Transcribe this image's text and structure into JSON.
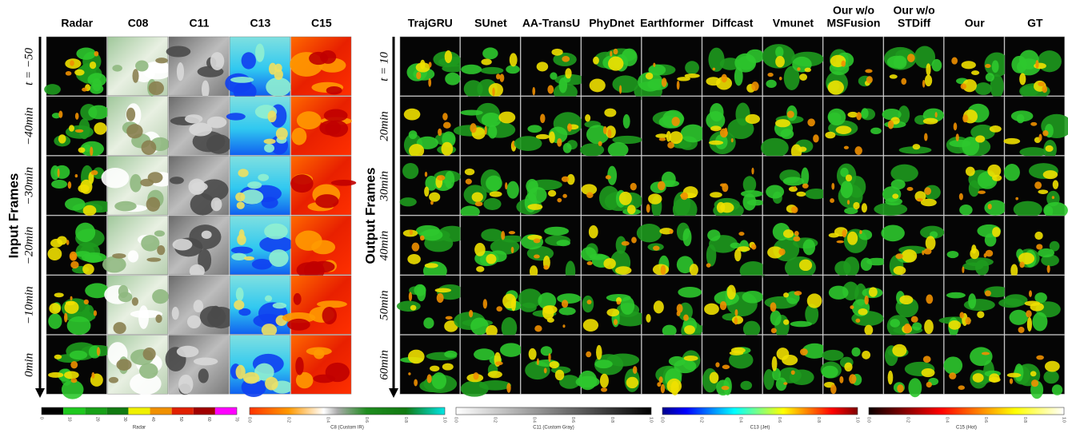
{
  "input": {
    "title": "Input Frames",
    "columns": [
      [
        "Radar"
      ],
      [
        "C08"
      ],
      [
        "C11"
      ],
      [
        "C13"
      ],
      [
        "C15"
      ]
    ],
    "rows": [
      "t = −50",
      "−40min",
      "−30min",
      "−20min",
      "−10min",
      "0min"
    ]
  },
  "output": {
    "title": "Output Frames",
    "columns": [
      [
        "TrajGRU"
      ],
      [
        "SUnet"
      ],
      [
        "AA-TransU"
      ],
      [
        "PhyDnet"
      ],
      [
        "Earthformer"
      ],
      [
        "Diffcast"
      ],
      [
        "Vmunet"
      ],
      [
        "Our w/o",
        "MSFusion"
      ],
      [
        "Our w/o",
        "STDiff"
      ],
      [
        "Our"
      ],
      [
        "GT"
      ]
    ],
    "rows": [
      "t = 10",
      "20min",
      "30min",
      "40min",
      "50min",
      "60min"
    ]
  },
  "colorbars": [
    {
      "label": "Radar",
      "ticks": [
        "0",
        "10",
        "20",
        "30",
        "40",
        "50",
        "60",
        "70"
      ]
    },
    {
      "label": "C8 (Custom IR)",
      "ticks": [
        "0.0",
        "0.2",
        "0.4",
        "0.6",
        "0.8",
        "1.0"
      ]
    },
    {
      "label": "C11 (Custom Gray)",
      "ticks": [
        "0.0",
        "0.2",
        "0.4",
        "0.6",
        "0.8",
        "1.0"
      ]
    },
    {
      "label": "C13 (Jet)",
      "ticks": [
        "0.0",
        "0.2",
        "0.4",
        "0.6",
        "0.8",
        "1.0"
      ]
    },
    {
      "label": "C15 (Hot)",
      "ticks": [
        "0.0",
        "0.2",
        "0.4",
        "0.6",
        "0.8",
        "1.0"
      ]
    }
  ]
}
